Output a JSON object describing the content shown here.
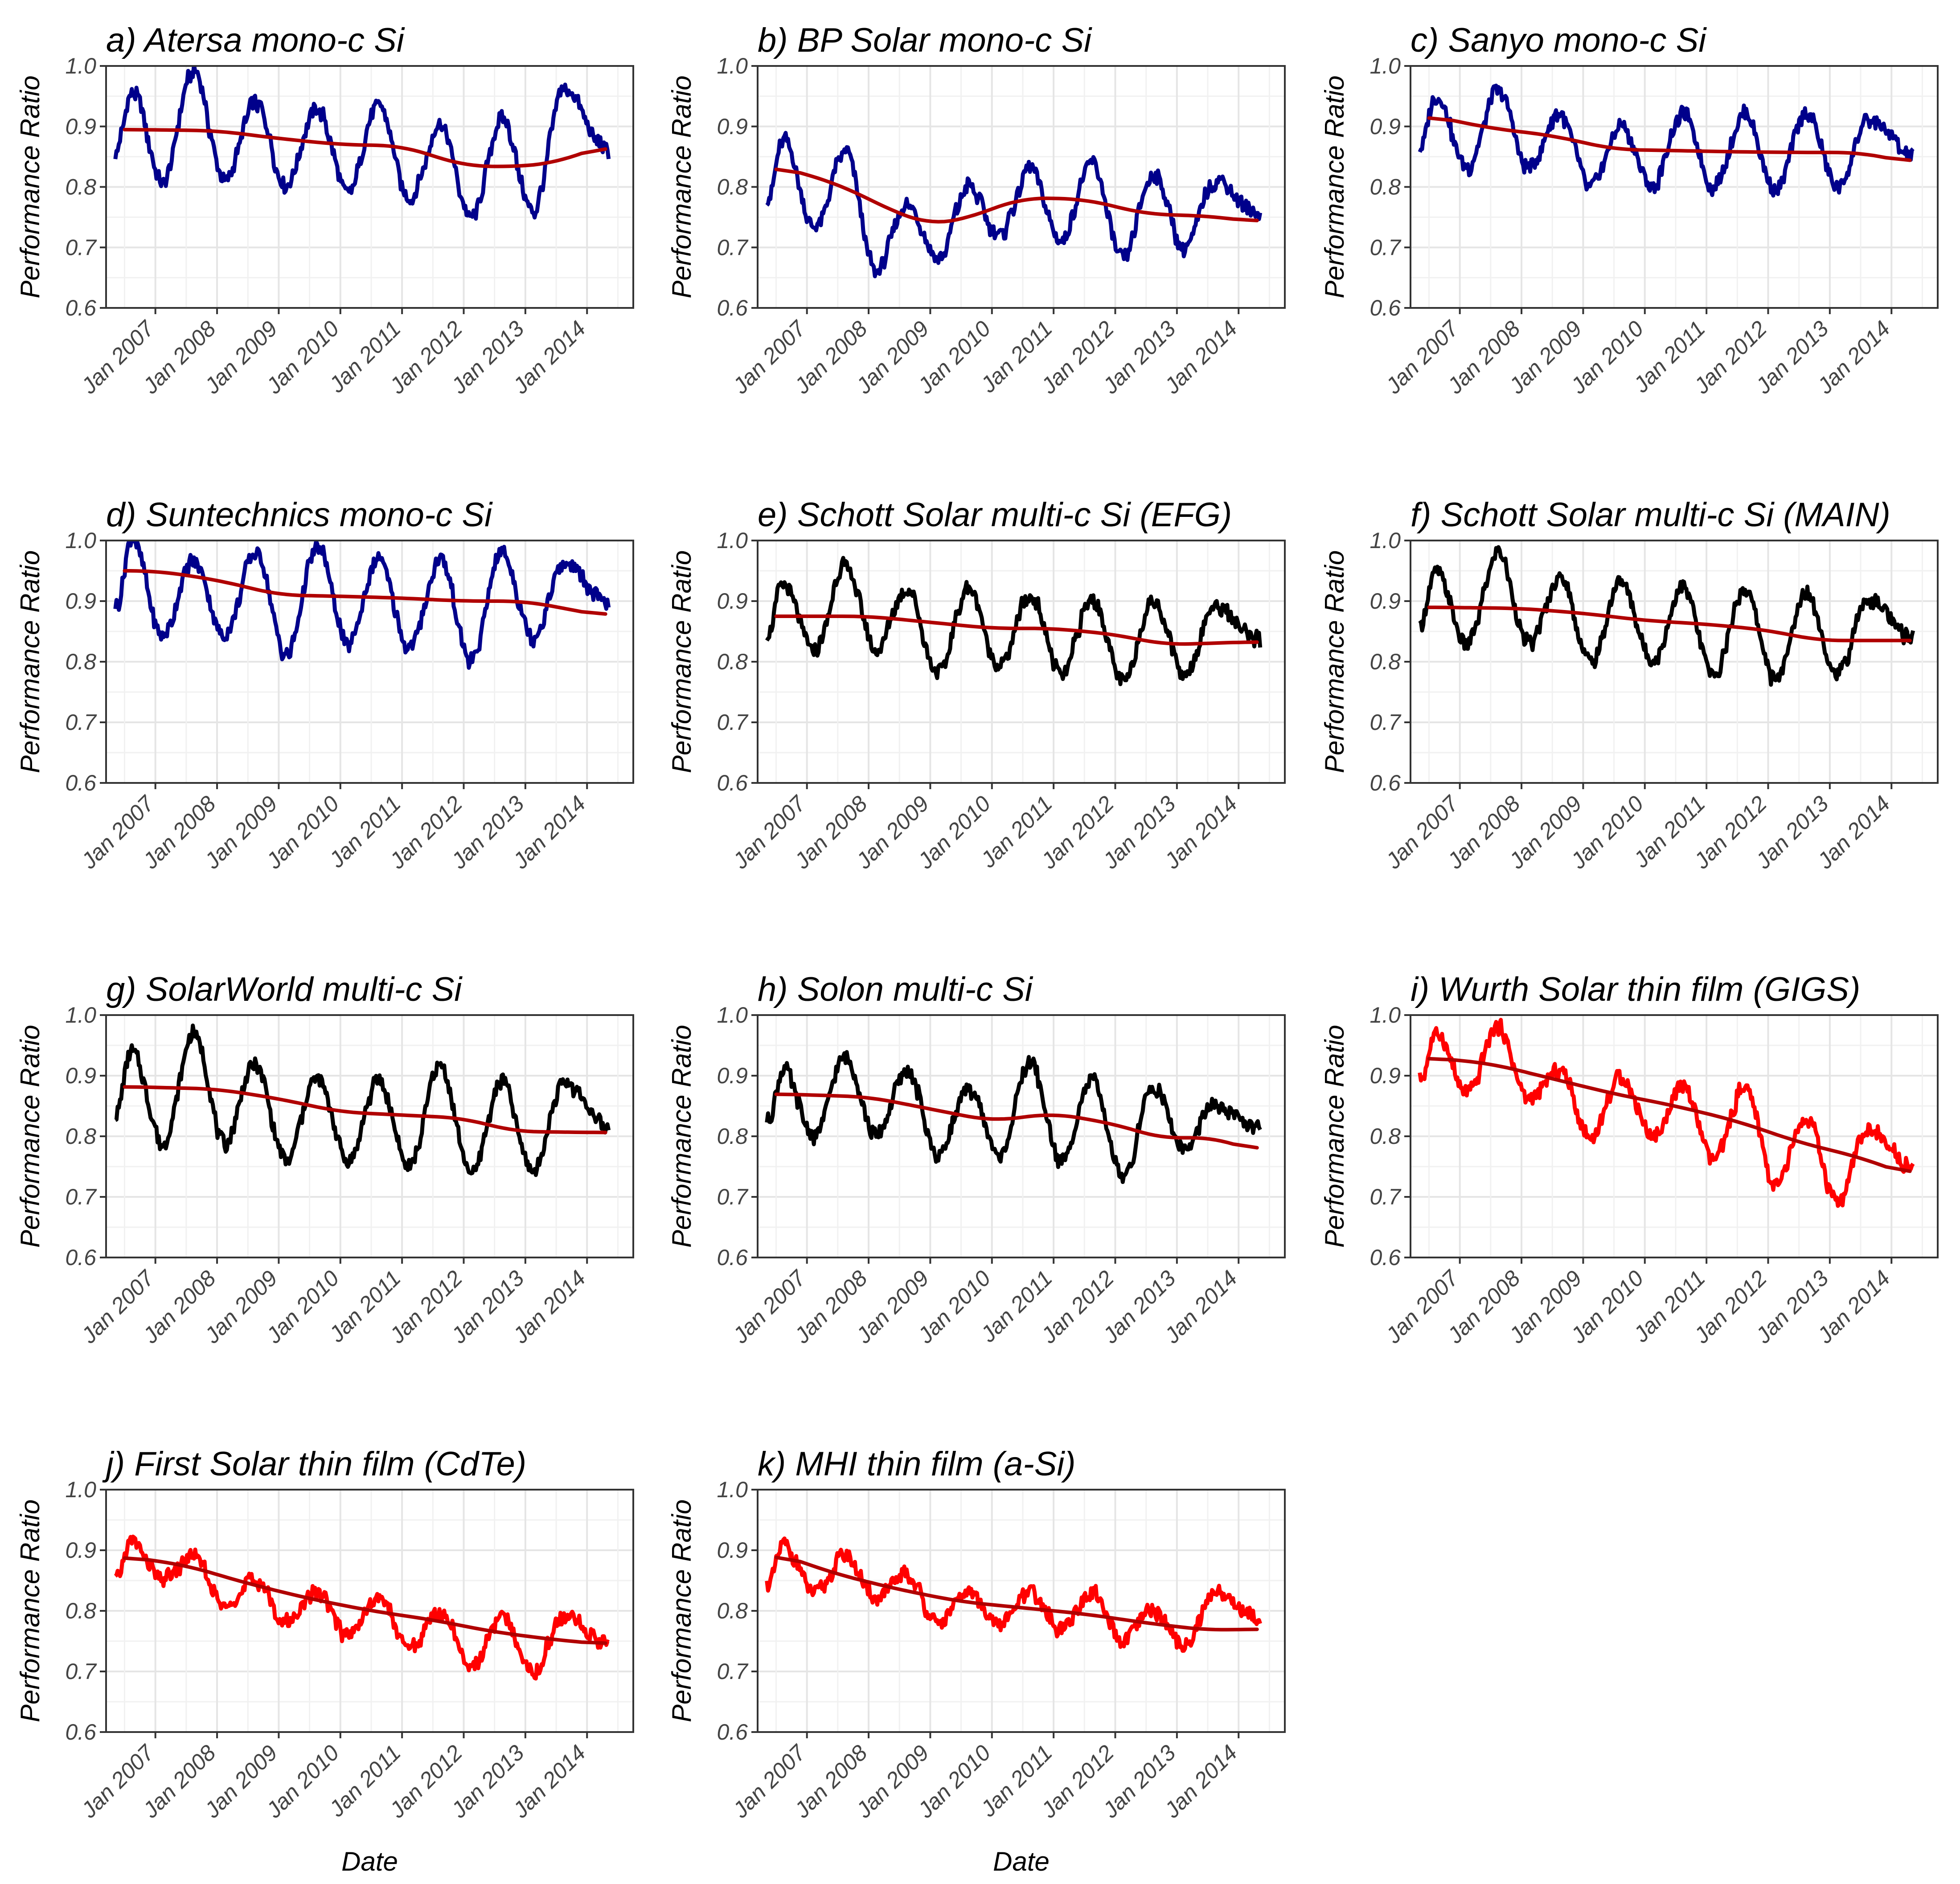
{
  "chart_data": [
    {
      "type": "line",
      "title": "a) Atersa mono-c Si",
      "xlabel": "",
      "ylabel": "Performance Ratio",
      "ylim": [
        0.6,
        1.0
      ],
      "yticks": [
        "0.6",
        "0.7",
        "0.8",
        "0.9",
        "1.0"
      ],
      "x_ticks": [
        "Jan 2007",
        "Jan 2008",
        "Jan 2009",
        "Jan 2010",
        "Jan 2011",
        "Jan 2012",
        "Jan 2013",
        "Jan 2014"
      ],
      "series": [
        {
          "name": "performance ratio",
          "color": "#00008b",
          "mean": 0.87,
          "amplitude": 0.065,
          "peaks": [
            0.96,
            0.99,
            0.94,
            0.93,
            0.94,
            0.9,
            0.91,
            0.96
          ],
          "troughs": [
            0.81,
            0.81,
            0.8,
            0.79,
            0.78,
            0.75,
            0.76
          ]
        },
        {
          "name": "trend",
          "color": "#b00000",
          "x": [
            2006.5,
            2008.0,
            2009.0,
            2010.0,
            2011.0,
            2012.0,
            2012.8,
            2013.5,
            2014.3
          ],
          "values": [
            0.895,
            0.893,
            0.88,
            0.87,
            0.868,
            0.835,
            0.833,
            0.84,
            0.87
          ]
        }
      ]
    },
    {
      "type": "line",
      "title": "b) BP Solar mono-c Si",
      "xlabel": "",
      "ylabel": "Performance Ratio",
      "ylim": [
        0.6,
        1.0
      ],
      "yticks": [
        "0.6",
        "0.7",
        "0.8",
        "0.9",
        "1.0"
      ],
      "x_ticks": [
        "Jan 2007",
        "Jan 2008",
        "Jan 2009",
        "Jan 2010",
        "Jan 2011",
        "Jan 2012",
        "Jan 2013",
        "Jan 2014"
      ],
      "series": [
        {
          "name": "performance ratio",
          "color": "#00008b",
          "mean": 0.77,
          "amplitude": 0.05,
          "peaks": [
            0.88,
            0.86,
            0.77,
            0.8,
            0.83,
            0.84,
            0.82,
            0.81
          ],
          "troughs": [
            0.73,
            0.66,
            0.68,
            0.72,
            0.71,
            0.68,
            0.7
          ]
        },
        {
          "name": "trend",
          "color": "#b00000",
          "x": [
            2006.5,
            2007.5,
            2008.5,
            2009.0,
            2009.5,
            2010.5,
            2011.5,
            2012.5,
            2013.5,
            2014.3
          ],
          "values": [
            0.835,
            0.805,
            0.755,
            0.738,
            0.745,
            0.782,
            0.78,
            0.755,
            0.752,
            0.742
          ]
        }
      ]
    },
    {
      "type": "line",
      "title": "c) Sanyo mono-c Si",
      "xlabel": "",
      "ylabel": "Performance Ratio",
      "ylim": [
        0.6,
        1.0
      ],
      "yticks": [
        "0.6",
        "0.7",
        "0.8",
        "0.9",
        "1.0"
      ],
      "x_ticks": [
        "Jan 2007",
        "Jan 2008",
        "Jan 2009",
        "Jan 2010",
        "Jan 2011",
        "Jan 2012",
        "Jan 2013",
        "Jan 2014"
      ],
      "series": [
        {
          "name": "performance ratio",
          "color": "#00008b",
          "mean": 0.87,
          "amplitude": 0.05,
          "peaks": [
            0.95,
            0.96,
            0.92,
            0.9,
            0.92,
            0.92,
            0.92,
            0.91
          ],
          "troughs": [
            0.83,
            0.83,
            0.8,
            0.8,
            0.8,
            0.8,
            0.8
          ]
        },
        {
          "name": "trend",
          "color": "#b00000",
          "x": [
            2006.5,
            2007.5,
            2008.5,
            2009.5,
            2010.5,
            2011.5,
            2012.5,
            2013.5,
            2014.3
          ],
          "values": [
            0.918,
            0.897,
            0.885,
            0.862,
            0.86,
            0.858,
            0.857,
            0.857,
            0.84
          ]
        }
      ]
    },
    {
      "type": "line",
      "title": "d) Suntechnics mono-c Si",
      "xlabel": "",
      "ylabel": "Performance Ratio",
      "ylim": [
        0.6,
        1.0
      ],
      "yticks": [
        "0.6",
        "0.7",
        "0.8",
        "0.9",
        "1.0"
      ],
      "x_ticks": [
        "Jan 2007",
        "Jan 2008",
        "Jan 2009",
        "Jan 2010",
        "Jan 2011",
        "Jan 2012",
        "Jan 2013",
        "Jan 2014"
      ],
      "series": [
        {
          "name": "performance ratio",
          "color": "#00008b",
          "mean": 0.91,
          "amplitude": 0.07,
          "peaks": [
            1.0,
            0.97,
            0.98,
            0.99,
            0.97,
            0.97,
            0.98,
            0.96
          ],
          "troughs": [
            0.84,
            0.84,
            0.81,
            0.83,
            0.82,
            0.8,
            0.84
          ]
        },
        {
          "name": "trend",
          "color": "#b00000",
          "x": [
            2006.5,
            2007.0,
            2008.0,
            2009.0,
            2010.0,
            2011.0,
            2012.0,
            2013.0,
            2014.3
          ],
          "values": [
            0.95,
            0.95,
            0.935,
            0.91,
            0.908,
            0.905,
            0.9,
            0.9,
            0.875
          ]
        }
      ]
    },
    {
      "type": "line",
      "title": "e) Schott Solar multi-c Si (EFG)",
      "xlabel": "",
      "ylabel": "Performance Ratio",
      "ylim": [
        0.6,
        1.0
      ],
      "yticks": [
        "0.6",
        "0.7",
        "0.8",
        "0.9",
        "1.0"
      ],
      "x_ticks": [
        "Jan 2007",
        "Jan 2008",
        "Jan 2009",
        "Jan 2010",
        "Jan 2011",
        "Jan 2012",
        "Jan 2013",
        "Jan 2014"
      ],
      "series": [
        {
          "name": "performance ratio",
          "color": "#000000",
          "mean": 0.85,
          "amplitude": 0.055,
          "peaks": [
            0.93,
            0.96,
            0.92,
            0.92,
            0.91,
            0.9,
            0.9,
            0.89
          ],
          "troughs": [
            0.82,
            0.82,
            0.78,
            0.79,
            0.78,
            0.77,
            0.78
          ]
        },
        {
          "name": "trend",
          "color": "#b00000",
          "x": [
            2006.5,
            2008.0,
            2009.0,
            2010.0,
            2011.0,
            2012.0,
            2012.8,
            2014.3
          ],
          "values": [
            0.875,
            0.875,
            0.865,
            0.855,
            0.855,
            0.845,
            0.828,
            0.833
          ]
        }
      ]
    },
    {
      "type": "line",
      "title": "f) Schott Solar multi-c Si (MAIN)",
      "xlabel": "",
      "ylabel": "Performance Ratio",
      "ylim": [
        0.6,
        1.0
      ],
      "yticks": [
        "0.6",
        "0.7",
        "0.8",
        "0.9",
        "1.0"
      ],
      "x_ticks": [
        "Jan 2007",
        "Jan 2008",
        "Jan 2009",
        "Jan 2010",
        "Jan 2011",
        "Jan 2012",
        "Jan 2013",
        "Jan 2014"
      ],
      "series": [
        {
          "name": "performance ratio",
          "color": "#000000",
          "mean": 0.86,
          "amplitude": 0.06,
          "peaks": [
            0.95,
            0.98,
            0.94,
            0.93,
            0.92,
            0.92,
            0.91,
            0.9
          ],
          "troughs": [
            0.83,
            0.83,
            0.8,
            0.8,
            0.78,
            0.77,
            0.78
          ]
        },
        {
          "name": "trend",
          "color": "#b00000",
          "x": [
            2006.5,
            2008.0,
            2009.0,
            2010.0,
            2011.0,
            2012.0,
            2012.8,
            2014.3
          ],
          "values": [
            0.89,
            0.888,
            0.88,
            0.868,
            0.862,
            0.852,
            0.835,
            0.835
          ]
        }
      ]
    },
    {
      "type": "line",
      "title": "g) SolarWorld multi-c Si",
      "xlabel": "",
      "ylabel": "Performance Ratio",
      "ylim": [
        0.6,
        1.0
      ],
      "yticks": [
        "0.6",
        "0.7",
        "0.8",
        "0.9",
        "1.0"
      ],
      "x_ticks": [
        "Jan 2007",
        "Jan 2008",
        "Jan 2009",
        "Jan 2010",
        "Jan 2011",
        "Jan 2012",
        "Jan 2013",
        "Jan 2014"
      ],
      "series": [
        {
          "name": "performance ratio",
          "color": "#000000",
          "mean": 0.84,
          "amplitude": 0.065,
          "peaks": [
            0.94,
            0.97,
            0.92,
            0.9,
            0.89,
            0.92,
            0.89,
            0.89
          ],
          "troughs": [
            0.79,
            0.79,
            0.76,
            0.76,
            0.75,
            0.74,
            0.74
          ]
        },
        {
          "name": "trend",
          "color": "#b00000",
          "x": [
            2006.5,
            2008.0,
            2009.0,
            2010.0,
            2011.0,
            2012.0,
            2012.8,
            2014.3
          ],
          "values": [
            0.882,
            0.878,
            0.862,
            0.84,
            0.835,
            0.83,
            0.808,
            0.806
          ]
        }
      ]
    },
    {
      "type": "line",
      "title": "h) Solon multi-c Si",
      "xlabel": "",
      "ylabel": "Performance Ratio",
      "ylim": [
        0.6,
        1.0
      ],
      "yticks": [
        "0.6",
        "0.7",
        "0.8",
        "0.9",
        "1.0"
      ],
      "x_ticks": [
        "Jan 2007",
        "Jan 2008",
        "Jan 2009",
        "Jan 2010",
        "Jan 2011",
        "Jan 2012",
        "Jan 2013",
        "Jan 2014"
      ],
      "series": [
        {
          "name": "performance ratio",
          "color": "#000000",
          "mean": 0.84,
          "amplitude": 0.055,
          "peaks": [
            0.91,
            0.93,
            0.91,
            0.88,
            0.92,
            0.89,
            0.88,
            0.85
          ],
          "troughs": [
            0.8,
            0.8,
            0.77,
            0.77,
            0.76,
            0.73,
            0.78
          ]
        },
        {
          "name": "trend",
          "color": "#b00000",
          "x": [
            2006.5,
            2008.0,
            2009.0,
            2010.0,
            2011.0,
            2012.0,
            2012.8,
            2013.5,
            2014.3
          ],
          "values": [
            0.87,
            0.865,
            0.845,
            0.825,
            0.838,
            0.82,
            0.795,
            0.8,
            0.775
          ]
        }
      ]
    },
    {
      "type": "line",
      "title": "i) Wurth Solar thin film (GIGS)",
      "xlabel": "",
      "ylabel": "Performance Ratio",
      "ylim": [
        0.6,
        1.0
      ],
      "yticks": [
        "0.6",
        "0.7",
        "0.8",
        "0.9",
        "1.0"
      ],
      "x_ticks": [
        "Jan 2007",
        "Jan 2008",
        "Jan 2009",
        "Jan 2010",
        "Jan 2011",
        "Jan 2012",
        "Jan 2013",
        "Jan 2014"
      ],
      "series": [
        {
          "name": "performance ratio",
          "color": "#ff0000",
          "mean": 0.84,
          "amplitude": 0.045,
          "peaks": [
            0.97,
            0.98,
            0.91,
            0.9,
            0.88,
            0.88,
            0.83,
            0.81
          ],
          "troughs": [
            0.87,
            0.86,
            0.8,
            0.8,
            0.76,
            0.72,
            0.69
          ]
        },
        {
          "name": "trend",
          "color": "#b00000",
          "x": [
            2006.5,
            2007.5,
            2008.5,
            2009.5,
            2010.5,
            2011.5,
            2012.5,
            2013.5,
            2014.3
          ],
          "values": [
            0.93,
            0.92,
            0.895,
            0.87,
            0.85,
            0.825,
            0.79,
            0.765,
            0.735
          ]
        }
      ]
    },
    {
      "type": "line",
      "title": "j) First Solar thin film (CdTe)",
      "xlabel": "Date",
      "ylabel": "Performance Ratio",
      "ylim": [
        0.6,
        1.0
      ],
      "yticks": [
        "0.6",
        "0.7",
        "0.8",
        "0.9",
        "1.0"
      ],
      "x_ticks": [
        "Jan 2007",
        "Jan 2008",
        "Jan 2009",
        "Jan 2010",
        "Jan 2011",
        "Jan 2012",
        "Jan 2013",
        "Jan 2014"
      ],
      "series": [
        {
          "name": "performance ratio",
          "color": "#ff0000",
          "mean": 0.81,
          "amplitude": 0.025,
          "peaks": [
            0.91,
            0.89,
            0.85,
            0.83,
            0.82,
            0.8,
            0.79,
            0.79
          ],
          "troughs": [
            0.85,
            0.81,
            0.78,
            0.76,
            0.74,
            0.71,
            0.7
          ]
        },
        {
          "name": "trend",
          "color": "#b00000",
          "x": [
            2006.5,
            2007.5,
            2008.5,
            2009.5,
            2010.5,
            2011.5,
            2012.5,
            2013.5,
            2014.3
          ],
          "values": [
            0.89,
            0.875,
            0.845,
            0.82,
            0.8,
            0.785,
            0.765,
            0.752,
            0.745
          ]
        }
      ]
    },
    {
      "type": "line",
      "title": "k) MHI thin film (a-Si)",
      "xlabel": "Date",
      "ylabel": "Performance Ratio",
      "ylim": [
        0.6,
        1.0
      ],
      "yticks": [
        "0.6",
        "0.7",
        "0.8",
        "0.9",
        "1.0"
      ],
      "x_ticks": [
        "Jan 2007",
        "Jan 2008",
        "Jan 2009",
        "Jan 2010",
        "Jan 2011",
        "Jan 2012",
        "Jan 2013",
        "Jan 2014"
      ],
      "series": [
        {
          "name": "performance ratio",
          "color": "#ff0000",
          "mean": 0.81,
          "amplitude": 0.025,
          "peaks": [
            0.91,
            0.89,
            0.86,
            0.83,
            0.83,
            0.83,
            0.8,
            0.83
          ],
          "troughs": [
            0.83,
            0.82,
            0.78,
            0.78,
            0.77,
            0.75,
            0.74
          ]
        },
        {
          "name": "trend",
          "color": "#b00000",
          "x": [
            2006.5,
            2007.5,
            2008.5,
            2009.5,
            2010.5,
            2011.5,
            2012.5,
            2013.5,
            2014.3
          ],
          "values": [
            0.895,
            0.86,
            0.835,
            0.815,
            0.805,
            0.795,
            0.78,
            0.768,
            0.77
          ]
        }
      ]
    }
  ]
}
